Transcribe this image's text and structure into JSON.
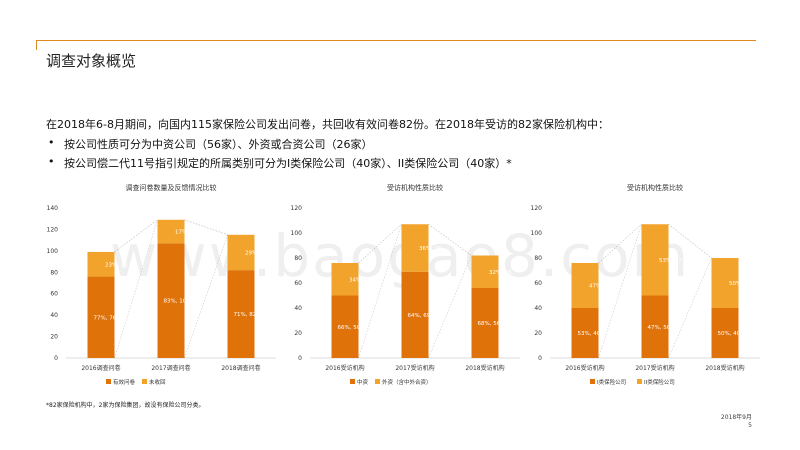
{
  "page": {
    "title": "调查对象概览",
    "intro": "在2018年6-8月期间，向国内115家保险公司发出问卷，共回收有效问卷82份。在2018年受访的82家保险机构中：",
    "bullets": [
      "按公司性质可分为中资公司（56家）、外资或合资公司（26家）",
      "按公司偿二代11号指引规定的所属类别可分为I类保险公司（40家）、II类保险公司（40家）*"
    ],
    "footnote": "*82家保险机构中，2家为保险集团，故没有保险公司分类。",
    "date": "2018年9月",
    "page_number": "5",
    "watermark": "www.baogao8.com"
  },
  "colors": {
    "dark": "#E0720A",
    "light": "#F2A32C",
    "accent_rule": "#E08A1E"
  },
  "chart_data": [
    {
      "type": "bar",
      "stacked": true,
      "title": "调查问卷数量及反馈情况比较",
      "categories": [
        "2016调查问卷",
        "2017调查问卷",
        "2018调查问卷"
      ],
      "ylim": [
        0,
        140
      ],
      "yticks": [
        0,
        20,
        40,
        60,
        80,
        100,
        120,
        140
      ],
      "series": [
        {
          "name": "有效问卷",
          "values": [
            76,
            107,
            82
          ],
          "labels": [
            "77%, 76",
            "83%, 107",
            "71%, 82"
          ]
        },
        {
          "name": "未收回",
          "values": [
            23,
            22,
            33
          ],
          "labels": [
            "23%, 23",
            "17%, 22",
            "29%, 33"
          ]
        }
      ]
    },
    {
      "type": "bar",
      "stacked": true,
      "title": "受访机构性质比较",
      "categories": [
        "2016受访机构",
        "2017受访机构",
        "2018受访机构"
      ],
      "ylim": [
        0,
        120
      ],
      "yticks": [
        0,
        20,
        40,
        60,
        80,
        100,
        120
      ],
      "series": [
        {
          "name": "中资",
          "values": [
            50,
            69,
            56
          ],
          "labels": [
            "66%, 50",
            "64%, 69",
            "68%, 56"
          ]
        },
        {
          "name": "外资（含中外合资）",
          "values": [
            26,
            38,
            26
          ],
          "labels": [
            "34%, 26",
            "36%, 38",
            "32%, 26"
          ]
        }
      ]
    },
    {
      "type": "bar",
      "stacked": true,
      "title": "受访机构性质比较",
      "categories": [
        "2016受访机构",
        "2017受访机构",
        "2018受访机构"
      ],
      "ylim": [
        0,
        120
      ],
      "yticks": [
        0,
        20,
        40,
        60,
        80,
        100,
        120
      ],
      "series": [
        {
          "name": "I类保险公司",
          "values": [
            40,
            50,
            40
          ],
          "labels": [
            "53%, 40",
            "47%, 50",
            "50%, 40"
          ]
        },
        {
          "name": "II类保险公司",
          "values": [
            36,
            57,
            40
          ],
          "labels": [
            "47%, 36",
            "53%, 57",
            "50%, 40"
          ]
        }
      ]
    }
  ]
}
